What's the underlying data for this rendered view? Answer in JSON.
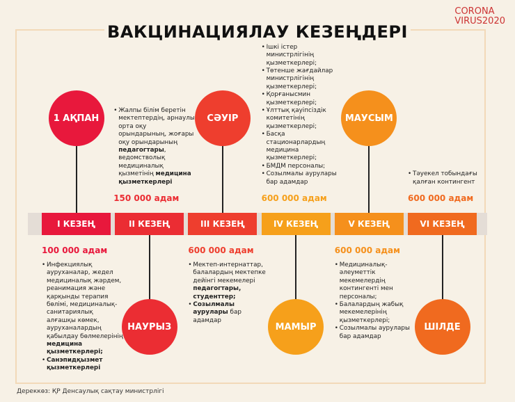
{
  "header": {
    "title": "ВАКЦИНАЦИЯЛАУ КЕЗЕҢДЕРІ",
    "logo": [
      "CORONA",
      "VIRUS2020"
    ]
  },
  "stages": [
    {
      "stage": "I КЕЗЕҢ",
      "month": "1 АҚПАН",
      "count": "100 000 адам",
      "color": "#e8183c",
      "bullets": [
        [
          {
            "text": "Инфекциялық ауруханалар, жедел медициналық жәрдем, реанимация және қарқынды терапия бөлімі, медициналық-санитариялық алғашқы көмек, ауруханалардың қабылдау бөлмелерінің "
          },
          {
            "text": "медицина қызметкерлері;",
            "bold": true
          }
        ],
        [
          {
            "text": "Санэпидқызмет қызметкерлері",
            "bold": true
          }
        ]
      ]
    },
    {
      "stage": "II КЕЗЕҢ",
      "month": "НАУРЫЗ",
      "count": "150 000 адам",
      "color": "#eb2d33",
      "bullets": [
        [
          {
            "text": "Жалпы білім беретін мектептердің, арнаулы орта оқу орындарының, жоғары оқу орындарының "
          },
          {
            "text": "педагогтары",
            "bold": true
          },
          {
            "text": ", ведомстволық медициналық қызметінің "
          },
          {
            "text": "медицина қызметкерлері",
            "bold": true
          }
        ]
      ]
    },
    {
      "stage": "III КЕЗЕҢ",
      "month": "СӘУІР",
      "count": "600 000 адам",
      "color": "#ee3e2e",
      "bullets": [
        [
          {
            "text": "Мектеп-интернаттар, балалардың мектепке дейінгі мекемелері "
          },
          {
            "text": "педагогтары, студенттер;",
            "bold": true
          }
        ],
        [
          {
            "text": "Созылмалы аурулары",
            "bold": true
          },
          {
            "text": " бар адамдар"
          }
        ]
      ]
    },
    {
      "stage": "IV КЕЗЕҢ",
      "month": "МАМЫР",
      "count": "600 000 адам",
      "color": "#f6a01b",
      "bullets": [
        [
          {
            "text": "Ішкі істер министрлігінің қызметкерлері;"
          }
        ],
        [
          {
            "text": "Төтенше жағдайлар министрлігінің қызметкерлері;"
          }
        ],
        [
          {
            "text": "Қорғаныс­мин қызметкерлері;"
          }
        ],
        [
          {
            "text": "Ұлттық қауіпсіздік комитетінің қызметкерлері;"
          }
        ],
        [
          {
            "text": "Басқа стационарлардың медицина қызметкерлері;"
          }
        ],
        [
          {
            "text": "БМДМ персоналы;"
          }
        ],
        [
          {
            "text": "Созылмалы аурулары бар адамдар"
          }
        ]
      ]
    },
    {
      "stage": "V КЕЗЕҢ",
      "month": "МАУСЫМ",
      "count": "600 000 адам",
      "color": "#f5901c",
      "bullets": [
        [
          {
            "text": "Медициналық-әлеуметтік мекемелердің контингенті мен персоналы;"
          }
        ],
        [
          {
            "text": "Балалардың жабық мекемелерінің қызметкерлері;"
          }
        ],
        [
          {
            "text": "Созылмалы аурулары бар адамдар"
          }
        ]
      ]
    },
    {
      "stage": "VI КЕЗЕҢ",
      "month": "ШІЛДЕ",
      "count": "600 000 адам",
      "color": "#f06a1f",
      "bullets": [
        [
          {
            "text": "Тәуекел тобындағы қалған контингент"
          }
        ]
      ]
    }
  ],
  "source": "Дереккөз: ҚР Денсаулық сақтау министрлігі"
}
